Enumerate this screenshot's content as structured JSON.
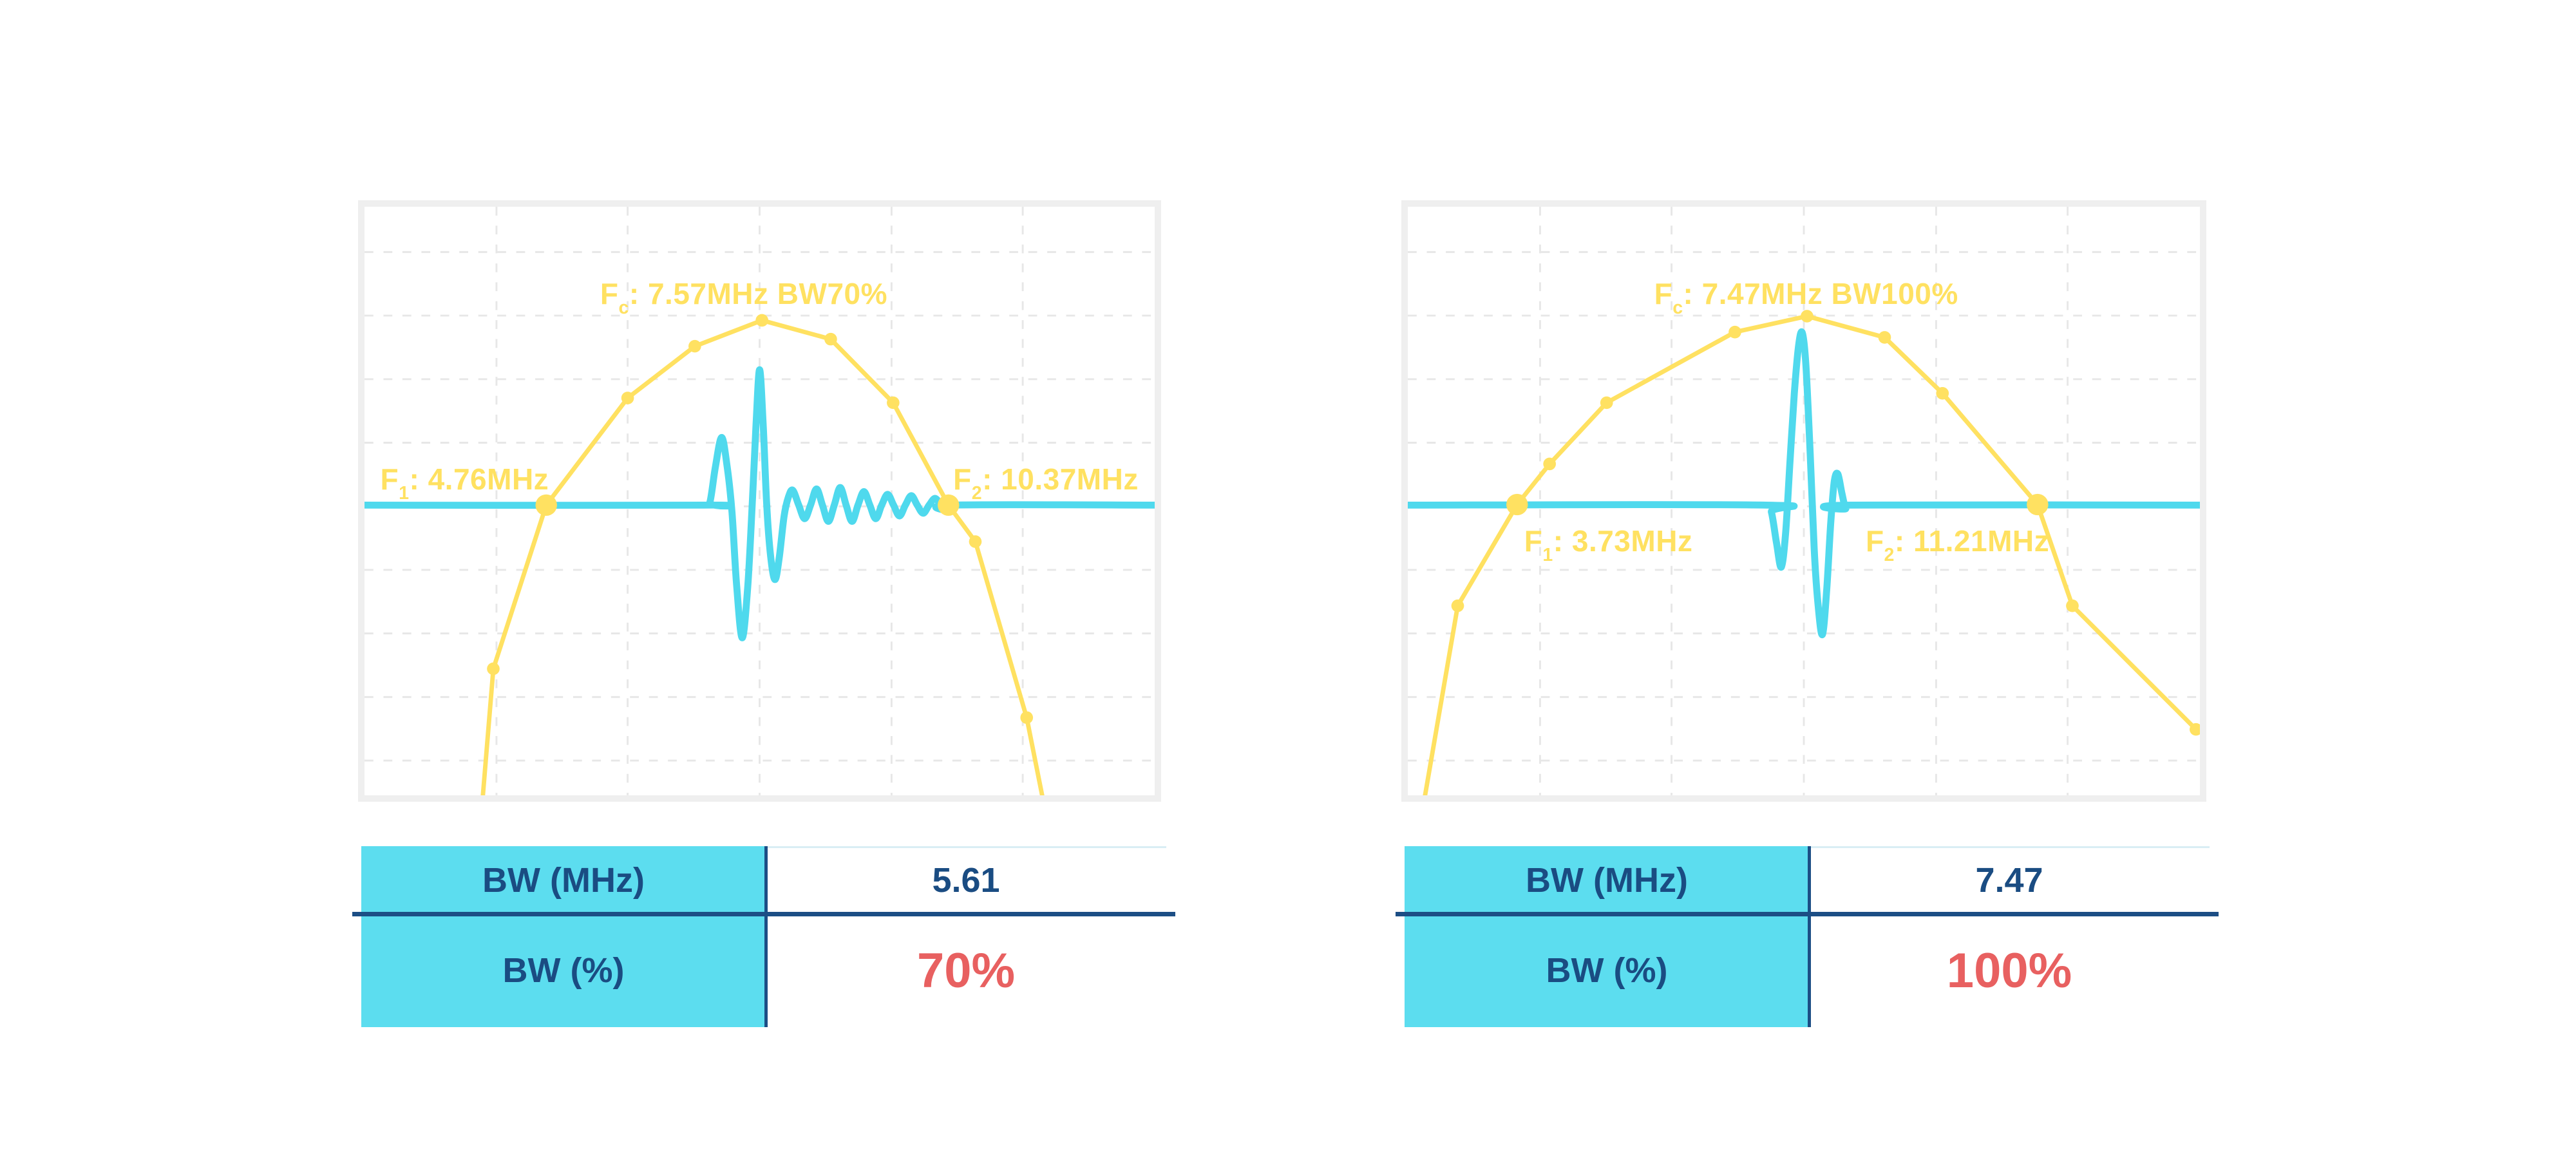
{
  "page": {
    "background": "#ffffff"
  },
  "colors": {
    "yellow": "#FFE161",
    "cyan": "#4FD9ED",
    "table_cyan": "#5CDDEF",
    "navy": "#1A4C82",
    "red": "#E86060",
    "panel_border": "#EFEFEF",
    "grid": "#E7E7E7",
    "value_topline": "#D9EEF4"
  },
  "chart_data": [
    {
      "type": "line",
      "title": "Fc: 7.57MHz BW70%",
      "annotations": {
        "fc": {
          "f": "F",
          "sub": "c",
          "rest": ": 7.57MHz BW70%"
        },
        "f1": {
          "f": "F",
          "sub": "1",
          "rest": ": 4.76MHz"
        },
        "f2": {
          "f": "F",
          "sub": "2",
          "rest": ": 10.37MHz"
        }
      },
      "anchors": {
        "f1_mhz": 4.76,
        "fc_mhz": 7.57,
        "f2_mhz": 10.37,
        "bw_mhz": 5.61,
        "bw_percent": 70
      },
      "axes": {
        "x_visible": false,
        "y_visible": false
      },
      "grid": {
        "x": [
          0.167,
          0.333,
          0.5,
          0.667,
          0.833
        ],
        "y": [
          0.077,
          0.185,
          0.293,
          0.401,
          0.509,
          0.617,
          0.725,
          0.833,
          0.941
        ]
      },
      "series": [
        {
          "name": "transducer-frequency-spectrum",
          "style": "line-with-markers",
          "points": [
            [
              0.148,
              1.03,
              ""
            ],
            [
              0.163,
              0.785,
              "dot"
            ],
            [
              0.23,
              0.507,
              "big"
            ],
            [
              0.333,
              0.325,
              "dot"
            ],
            [
              0.418,
              0.237,
              "dot"
            ],
            [
              0.503,
              0.193,
              "dot"
            ],
            [
              0.59,
              0.225,
              "dot"
            ],
            [
              0.669,
              0.333,
              "dot"
            ],
            [
              0.739,
              0.507,
              "big"
            ],
            [
              0.773,
              0.569,
              "dot"
            ],
            [
              0.838,
              0.868,
              "dot"
            ],
            [
              0.862,
              1.03,
              ""
            ]
          ]
        },
        {
          "name": "pulse-echo-waveform",
          "style": "smooth-line",
          "baseline_y": 0.507,
          "amp": 0.23,
          "points": [
            [
              0,
              0
            ],
            [
              0.43,
              0
            ],
            [
              0.437,
              0.02
            ],
            [
              0.444,
              0.28
            ],
            [
              0.452,
              0.5
            ],
            [
              0.459,
              0.28
            ],
            [
              0.465,
              -0.05
            ],
            [
              0.471,
              -0.6
            ],
            [
              0.478,
              -0.98
            ],
            [
              0.485,
              -0.6
            ],
            [
              0.491,
              0.05
            ],
            [
              0.4955,
              0.6
            ],
            [
              0.5,
              1.0
            ],
            [
              0.5045,
              0.6
            ],
            [
              0.509,
              0.0
            ],
            [
              0.514,
              -0.38
            ],
            [
              0.5195,
              -0.55
            ],
            [
              0.525,
              -0.38
            ],
            [
              0.531,
              -0.08
            ],
            [
              0.5365,
              0.06
            ],
            [
              0.542,
              0.11
            ],
            [
              0.5495,
              0
            ],
            [
              0.557,
              -0.1
            ],
            [
              0.5645,
              0
            ],
            [
              0.572,
              0.12
            ],
            [
              0.5795,
              0
            ],
            [
              0.587,
              -0.12
            ],
            [
              0.5945,
              0
            ],
            [
              0.602,
              0.13
            ],
            [
              0.6095,
              0
            ],
            [
              0.617,
              -0.12
            ],
            [
              0.6245,
              0
            ],
            [
              0.632,
              0.1
            ],
            [
              0.6395,
              0
            ],
            [
              0.647,
              -0.1
            ],
            [
              0.6545,
              0
            ],
            [
              0.662,
              0.08
            ],
            [
              0.6695,
              0
            ],
            [
              0.677,
              -0.08
            ],
            [
              0.6845,
              0
            ],
            [
              0.692,
              0.07
            ],
            [
              0.6995,
              0
            ],
            [
              0.707,
              -0.06
            ],
            [
              0.7145,
              0
            ],
            [
              0.722,
              0.05
            ],
            [
              0.7295,
              0
            ],
            [
              0.7365,
              -0.04
            ],
            [
              0.744,
              0
            ],
            [
              1,
              0
            ]
          ]
        }
      ],
      "table": {
        "rows": [
          {
            "label": "BW (MHz)",
            "value": "5.61"
          },
          {
            "label": "BW (%)",
            "value": "70%"
          }
        ]
      }
    },
    {
      "type": "line",
      "title": "Fc: 7.47MHz BW100%",
      "annotations": {
        "fc": {
          "f": "F",
          "sub": "c",
          "rest": ": 7.47MHz BW100%"
        },
        "f1": {
          "f": "F",
          "sub": "1",
          "rest": ": 3.73MHz"
        },
        "f2": {
          "f": "F",
          "sub": "2",
          "rest": ": 11.21MHz"
        }
      },
      "anchors": {
        "f1_mhz": 3.73,
        "fc_mhz": 7.47,
        "f2_mhz": 11.21,
        "bw_mhz": 7.47,
        "bw_percent": 100
      },
      "axes": {
        "x_visible": false,
        "y_visible": false
      },
      "grid": {
        "x": [
          0.167,
          0.333,
          0.5,
          0.667,
          0.833
        ],
        "y": [
          0.077,
          0.185,
          0.293,
          0.401,
          0.509,
          0.617,
          0.725,
          0.833,
          0.941
        ]
      },
      "series": [
        {
          "name": "transducer-frequency-spectrum",
          "style": "line-with-markers",
          "points": [
            [
              0.018,
              1.03,
              ""
            ],
            [
              0.063,
              0.678,
              "dot"
            ],
            [
              0.138,
              0.506,
              "big"
            ],
            [
              0.179,
              0.437,
              "dot"
            ],
            [
              0.251,
              0.333,
              "dot"
            ],
            [
              0.413,
              0.213,
              "dot"
            ],
            [
              0.504,
              0.186,
              "dot"
            ],
            [
              0.602,
              0.222,
              "dot"
            ],
            [
              0.675,
              0.317,
              "dot"
            ],
            [
              0.795,
              0.506,
              "big"
            ],
            [
              0.839,
              0.678,
              "dot"
            ],
            [
              0.995,
              0.888,
              "dot"
            ]
          ]
        },
        {
          "name": "pulse-echo-waveform",
          "style": "smooth-line",
          "baseline_y": 0.507,
          "amp": 0.293,
          "points": [
            [
              0,
              0
            ],
            [
              0.4525,
              0
            ],
            [
              0.459,
              -0.04
            ],
            [
              0.4655,
              -0.22
            ],
            [
              0.4715,
              -0.36
            ],
            [
              0.477,
              -0.16
            ],
            [
              0.4825,
              0.25
            ],
            [
              0.488,
              0.65
            ],
            [
              0.4935,
              0.93
            ],
            [
              0.498,
              1.0
            ],
            [
              0.5025,
              0.82
            ],
            [
              0.508,
              0.3
            ],
            [
              0.513,
              -0.25
            ],
            [
              0.518,
              -0.58
            ],
            [
              0.5235,
              -0.75
            ],
            [
              0.529,
              -0.48
            ],
            [
              0.534,
              -0.1
            ],
            [
              0.5385,
              0.14
            ],
            [
              0.543,
              0.18
            ],
            [
              0.548,
              0.07
            ],
            [
              0.553,
              -0.02
            ],
            [
              0.559,
              0
            ],
            [
              1,
              0
            ]
          ]
        }
      ],
      "table": {
        "rows": [
          {
            "label": "BW (MHz)",
            "value": "7.47"
          },
          {
            "label": "BW (%)",
            "value": "100%"
          }
        ]
      }
    }
  ]
}
